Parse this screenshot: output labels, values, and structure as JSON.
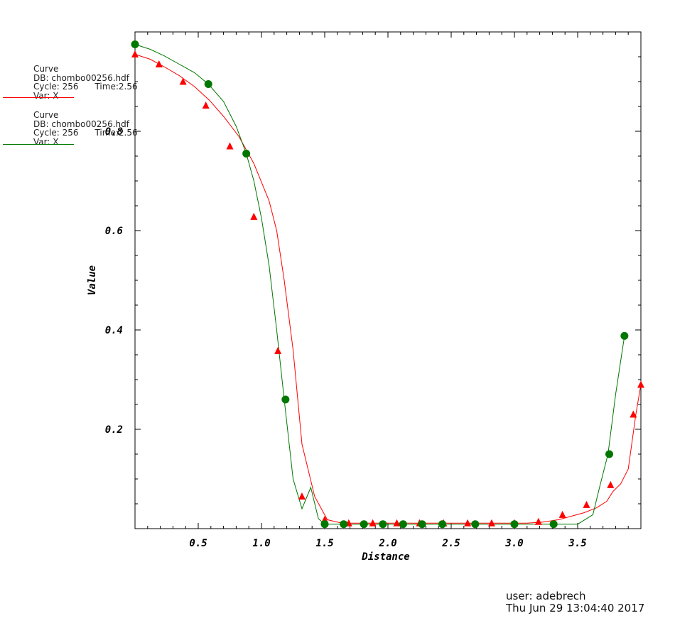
{
  "legend": [
    {
      "title": "Curve",
      "db": "DB: chombo00256.hdf",
      "cycle": "Cycle: 256",
      "time": "Time:2.56",
      "var": "Var: X",
      "color": "#ff0000"
    },
    {
      "title": "Curve",
      "db": "DB: chombo00256.hdf",
      "cycle": "Cycle: 256",
      "time": "Time:2.56",
      "var": "Var: X",
      "color": "#007700"
    }
  ],
  "footer": {
    "user": "user: adebrech",
    "timestamp": "Thu Jun 29 13:04:40 2017"
  },
  "chart_data": {
    "type": "line",
    "xlabel": "Distance",
    "ylabel": "Value",
    "xlim": [
      0,
      4.0
    ],
    "ylim": [
      0.0,
      1.0
    ],
    "xticks": [
      0.5,
      1.0,
      1.5,
      2.0,
      2.5,
      3.0,
      3.5
    ],
    "yticks": [
      0.2,
      0.4,
      0.6,
      0.8
    ],
    "grid": false,
    "legend_position": "top-left",
    "series": [
      {
        "color": "#ff0000",
        "marker": "triangle",
        "x": [
          0.0,
          0.12,
          0.23,
          0.35,
          0.47,
          0.59,
          0.7,
          0.82,
          0.94,
          1.06,
          1.12,
          1.18,
          1.25,
          1.32,
          1.42,
          1.52,
          1.62,
          1.7,
          1.9,
          2.1,
          2.3,
          2.5,
          2.7,
          2.9,
          3.1,
          3.22,
          3.35,
          3.45,
          3.55,
          3.65,
          3.73,
          3.78,
          3.84,
          3.9,
          3.96,
          4.0
        ],
        "y": [
          0.955,
          0.945,
          0.93,
          0.912,
          0.89,
          0.862,
          0.83,
          0.79,
          0.735,
          0.66,
          0.6,
          0.5,
          0.36,
          0.17,
          0.065,
          0.018,
          0.012,
          0.011,
          0.011,
          0.011,
          0.011,
          0.011,
          0.011,
          0.011,
          0.011,
          0.013,
          0.018,
          0.025,
          0.032,
          0.042,
          0.055,
          0.075,
          0.09,
          0.12,
          0.23,
          0.29
        ],
        "markers_x": [
          0.0,
          0.19,
          0.38,
          0.56,
          0.75,
          0.94,
          1.13,
          1.32,
          1.5,
          1.69,
          1.88,
          2.07,
          2.25,
          2.44,
          2.63,
          2.82,
          3.0,
          3.19,
          3.38,
          3.57,
          3.76,
          3.94,
          4.0
        ],
        "markers_y": [
          0.955,
          0.935,
          0.9,
          0.852,
          0.77,
          0.628,
          0.358,
          0.065,
          0.018,
          0.011,
          0.011,
          0.011,
          0.011,
          0.011,
          0.011,
          0.011,
          0.011,
          0.014,
          0.028,
          0.048,
          0.088,
          0.23,
          0.29
        ]
      },
      {
        "color": "#007700",
        "marker": "circle",
        "x": [
          0.0,
          0.12,
          0.23,
          0.35,
          0.47,
          0.58,
          0.7,
          0.8,
          0.88,
          0.94,
          1.0,
          1.06,
          1.12,
          1.18,
          1.25,
          1.32,
          1.39,
          1.45,
          1.5,
          1.62,
          1.75,
          1.9,
          2.1,
          2.3,
          2.5,
          2.7,
          2.9,
          3.1,
          3.3,
          3.5,
          3.62,
          3.68,
          3.74,
          3.8,
          3.87
        ],
        "y": [
          0.975,
          0.965,
          0.952,
          0.935,
          0.918,
          0.895,
          0.86,
          0.81,
          0.755,
          0.7,
          0.625,
          0.53,
          0.4,
          0.26,
          0.1,
          0.04,
          0.083,
          0.02,
          0.009,
          0.009,
          0.009,
          0.009,
          0.009,
          0.009,
          0.009,
          0.009,
          0.009,
          0.009,
          0.009,
          0.009,
          0.028,
          0.09,
          0.15,
          0.27,
          0.388
        ],
        "markers_x": [
          0.0,
          0.58,
          0.88,
          1.19,
          1.5,
          1.65,
          1.81,
          1.96,
          2.12,
          2.27,
          2.43,
          2.69,
          3.0,
          3.31,
          3.75,
          3.87
        ],
        "markers_y": [
          0.975,
          0.895,
          0.755,
          0.26,
          0.009,
          0.009,
          0.009,
          0.009,
          0.009,
          0.009,
          0.009,
          0.009,
          0.009,
          0.009,
          0.15,
          0.388
        ]
      }
    ]
  }
}
